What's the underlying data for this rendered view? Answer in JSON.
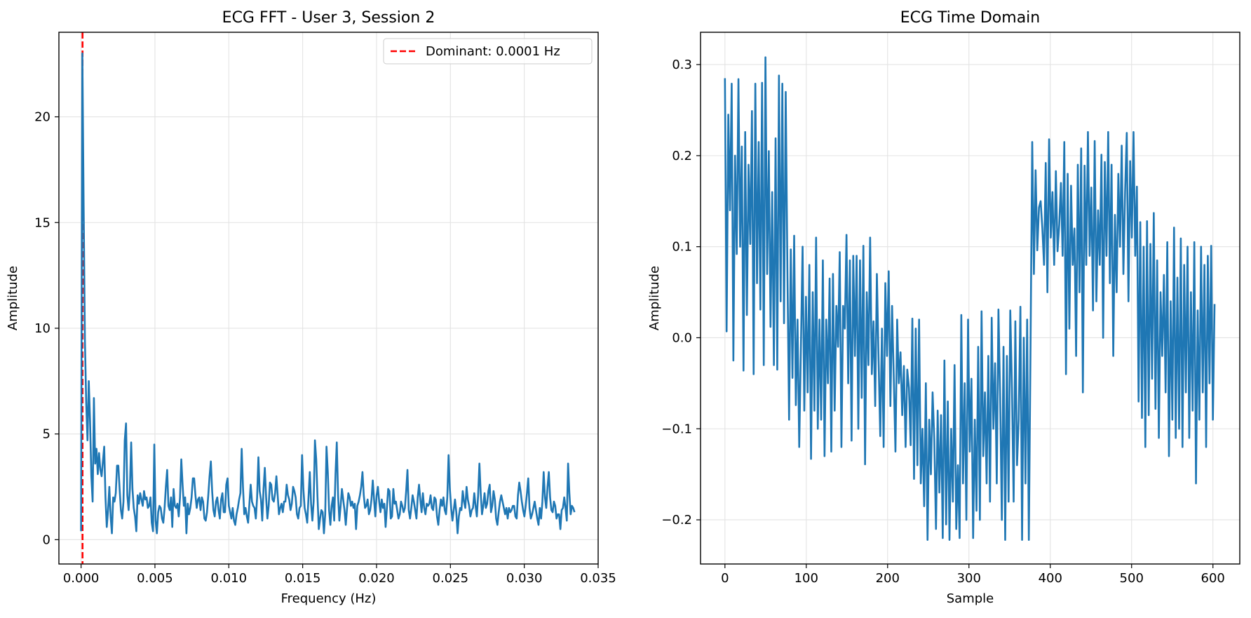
{
  "chart_data": [
    {
      "type": "line",
      "title": "ECG FFT - User 3, Session 2",
      "xlabel": "Frequency (Hz)",
      "ylabel": "Amplitude",
      "xlim": [
        -0.0015,
        0.035
      ],
      "ylim": [
        -1.15,
        24.0
      ],
      "xticks": [
        0.0,
        0.005,
        0.01,
        0.015,
        0.02,
        0.025,
        0.03,
        0.035
      ],
      "xtick_labels": [
        "0.000",
        "0.005",
        "0.010",
        "0.015",
        "0.020",
        "0.025",
        "0.030",
        "0.035"
      ],
      "yticks": [
        0,
        5,
        10,
        15,
        20
      ],
      "ytick_labels": [
        "0",
        "5",
        "10",
        "15",
        "20"
      ],
      "grid": true,
      "legend": {
        "position": "top-right",
        "entries": [
          "Dominant: 0.0001 Hz"
        ]
      },
      "annotations": [
        {
          "type": "vline",
          "x": 0.0001,
          "color": "#ff0000",
          "style": "dashed",
          "legend": "Dominant: 0.0001 Hz"
        }
      ],
      "series": [
        {
          "color": "#1f77b4",
          "x_start": 0.0,
          "x_end": 0.0334,
          "values": [
            0.4,
            23.0,
            15.8,
            9.4,
            6.5,
            4.7,
            7.5,
            5.6,
            3.0,
            1.8,
            6.7,
            3.6,
            4.3,
            3.1,
            4.1,
            3.3,
            3.0,
            3.7,
            4.4,
            2.0,
            0.6,
            1.4,
            2.5,
            1.1,
            0.3,
            2.0,
            1.8,
            2.2,
            3.5,
            3.5,
            2.4,
            1.4,
            1.0,
            1.8,
            4.7,
            5.5,
            2.1,
            1.4,
            2.4,
            4.6,
            2.4,
            1.5,
            1.1,
            0.4,
            2.1,
            1.7,
            2.2,
            1.9,
            1.6,
            2.3,
            1.9,
            2.0,
            1.5,
            1.6,
            2.0,
            0.8,
            0.4,
            4.5,
            0.9,
            0.3,
            1.3,
            1.6,
            1.5,
            1.0,
            0.8,
            1.5,
            2.5,
            3.3,
            1.6,
            1.4,
            2.0,
            0.6,
            2.4,
            1.6,
            1.5,
            1.7,
            1.1,
            2.0,
            3.8,
            2.6,
            1.6,
            2.0,
            0.3,
            1.7,
            1.2,
            1.5,
            2.0,
            2.9,
            2.9,
            2.1,
            1.5,
            1.9,
            2.0,
            1.4,
            2.0,
            1.8,
            1.0,
            0.9,
            1.3,
            2.1,
            3.0,
            3.7,
            2.3,
            1.4,
            1.1,
            1.8,
            2.0,
            1.4,
            1.0,
            1.9,
            2.2,
            1.3,
            1.3,
            2.6,
            2.9,
            1.6,
            1.3,
            1.0,
            1.5,
            0.9,
            0.7,
            1.2,
            1.5,
            1.9,
            2.2,
            4.3,
            2.5,
            1.2,
            1.5,
            1.1,
            0.8,
            1.7,
            2.6,
            1.8,
            1.6,
            1.5,
            1.0,
            2.0,
            3.9,
            2.3,
            1.9,
            0.9,
            2.4,
            3.4,
            2.0,
            1.0,
            1.6,
            2.7,
            2.6,
            1.9,
            1.8,
            2.2,
            3.0,
            2.1,
            1.2,
            1.5,
            1.7,
            1.3,
            1.8,
            1.8,
            2.6,
            2.1,
            1.9,
            1.4,
            1.7,
            2.5,
            2.3,
            2.0,
            1.2,
            1.0,
            1.5,
            1.6,
            4.0,
            2.4,
            1.5,
            1.2,
            0.8,
            2.0,
            3.2,
            1.7,
            0.9,
            1.8,
            4.7,
            3.8,
            2.0,
            0.5,
            1.0,
            1.4,
            1.3,
            0.3,
            1.2,
            4.4,
            3.2,
            1.4,
            0.7,
            1.6,
            2.0,
            0.9,
            3.1,
            4.6,
            2.1,
            0.9,
            1.6,
            2.4,
            1.9,
            1.4,
            0.7,
            1.5,
            2.2,
            2.0,
            1.6,
            1.8,
            1.5,
            1.7,
            0.5,
            1.6,
            1.8,
            2.1,
            2.5,
            3.2,
            2.1,
            1.5,
            1.6,
            1.9,
            1.2,
            1.4,
            1.9,
            2.8,
            1.9,
            1.1,
            2.1,
            2.5,
            1.8,
            1.3,
            1.9,
            1.5,
            1.7,
            0.6,
            1.5,
            2.4,
            2.3,
            1.0,
            1.1,
            2.4,
            1.7,
            1.8,
            1.4,
            1.0,
            1.2,
            1.8,
            1.6,
            1.3,
            1.5,
            2.3,
            3.3,
            1.4,
            1.0,
            1.5,
            2.1,
            1.8,
            1.4,
            1.0,
            2.0,
            2.6,
            1.9,
            1.3,
            2.2,
            1.5,
            1.2,
            1.7,
            1.6,
            1.7,
            2.1,
            1.5,
            1.4,
            2.0,
            1.9,
            1.1,
            0.7,
            1.4,
            1.9,
            1.6,
            2.0,
            1.4,
            1.2,
            2.0,
            4.0,
            2.4,
            1.5,
            0.9,
            1.4,
            1.9,
            1.3,
            0.3,
            1.1,
            1.5,
            1.4,
            2.3,
            1.8,
            1.5,
            2.5,
            1.9,
            1.6,
            1.1,
            1.4,
            1.5,
            2.2,
            1.6,
            1.1,
            2.1,
            3.6,
            2.2,
            1.2,
            1.6,
            2.2,
            1.5,
            1.7,
            2.3,
            2.6,
            1.3,
            1.6,
            2.3,
            1.9,
            1.0,
            0.7,
            1.3,
            1.8,
            2.1,
            1.8,
            1.5,
            1.2,
            1.5,
            1.0,
            1.5,
            1.3,
            1.4,
            1.6,
            1.6,
            1.1,
            1.0,
            2.1,
            2.7,
            2.3,
            1.8,
            1.4,
            1.1,
            1.6,
            2.2,
            2.9,
            1.5,
            1.0,
            1.2,
            1.5,
            1.8,
            1.4,
            1.0,
            0.7,
            1.5,
            1.0,
            1.8,
            3.2,
            2.0,
            1.5,
            2.5,
            3.2,
            2.0,
            1.4,
            1.3,
            1.8,
            1.6,
            1.0,
            1.2,
            1.2,
            0.5,
            1.4,
            1.5,
            2.0,
            1.5,
            0.9,
            3.6,
            2.2,
            1.2,
            1.6,
            1.5,
            1.3
          ]
        }
      ]
    },
    {
      "type": "line",
      "title": "ECG Time Domain",
      "xlabel": "Sample",
      "ylabel": "Amplitude",
      "xlim": [
        -30,
        633
      ],
      "ylim": [
        -0.2485,
        0.3355
      ],
      "xticks": [
        0,
        100,
        200,
        300,
        400,
        500,
        600
      ],
      "xtick_labels": [
        "0",
        "100",
        "200",
        "300",
        "400",
        "500",
        "600"
      ],
      "yticks": [
        -0.2,
        -0.1,
        0.0,
        0.1,
        0.2,
        0.3
      ],
      "ytick_labels": [
        "−0.2",
        "−0.1",
        "0.0",
        "0.1",
        "0.2",
        "0.3"
      ],
      "grid": true,
      "series": [
        {
          "color": "#1f77b4",
          "x_start": 0,
          "x_end": 602,
          "values": [
            0.285,
            0.007,
            0.245,
            0.14,
            0.279,
            -0.025,
            0.2,
            0.092,
            0.284,
            0.1,
            0.21,
            -0.036,
            0.226,
            0.025,
            0.19,
            0.103,
            0.249,
            -0.04,
            0.279,
            0.06,
            0.215,
            0.031,
            0.28,
            -0.03,
            0.308,
            0.07,
            0.205,
            0.012,
            0.16,
            -0.03,
            0.219,
            -0.035,
            0.288,
            0.04,
            0.279,
            0.016,
            0.27,
            0.075,
            -0.09,
            0.097,
            -0.044,
            0.112,
            -0.074,
            0.02,
            -0.12,
            -0.01,
            0.1,
            -0.08,
            0.045,
            -0.06,
            0.08,
            -0.133,
            0.05,
            -0.08,
            0.11,
            -0.1,
            0.02,
            -0.09,
            0.085,
            -0.13,
            0.02,
            -0.05,
            0.065,
            -0.125,
            0.07,
            -0.08,
            0.035,
            -0.01,
            0.094,
            -0.12,
            0.035,
            0.01,
            0.113,
            -0.05,
            0.085,
            -0.113,
            0.09,
            -0.02,
            0.09,
            -0.1,
            0.085,
            -0.066,
            0.101,
            -0.139,
            0.05,
            -0.03,
            0.11,
            -0.04,
            0.018,
            -0.075,
            0.07,
            -0.024,
            -0.108,
            0.01,
            -0.12,
            0.06,
            -0.02,
            0.073,
            -0.075,
            0.035,
            -0.043,
            -0.125,
            0.02,
            -0.05,
            -0.016,
            -0.085,
            -0.031,
            -0.12,
            -0.035,
            -0.055,
            -0.118,
            0.021,
            -0.155,
            0.01,
            -0.14,
            0.02,
            -0.16,
            -0.1,
            -0.185,
            -0.05,
            -0.222,
            -0.09,
            -0.15,
            -0.06,
            -0.112,
            -0.21,
            -0.08,
            -0.17,
            -0.085,
            -0.22,
            -0.025,
            -0.205,
            -0.07,
            -0.222,
            -0.1,
            -0.18,
            -0.03,
            -0.21,
            -0.14,
            -0.22,
            0.025,
            -0.16,
            -0.05,
            -0.2,
            0.02,
            -0.125,
            -0.045,
            -0.22,
            -0.09,
            -0.19,
            -0.01,
            -0.2,
            0.029,
            -0.13,
            -0.06,
            -0.16,
            -0.02,
            -0.18,
            0.022,
            -0.1,
            -0.028,
            -0.16,
            0.031,
            -0.065,
            -0.2,
            -0.01,
            -0.222,
            -0.02,
            -0.18,
            0.03,
            -0.055,
            -0.18,
            0.018,
            -0.14,
            -0.09,
            0.034,
            -0.222,
            0.0,
            -0.16,
            0.02,
            -0.222,
            -0.01,
            0.215,
            0.07,
            0.184,
            0.096,
            0.143,
            0.15,
            0.12,
            0.08,
            0.192,
            0.05,
            0.218,
            0.11,
            0.16,
            0.08,
            0.183,
            0.095,
            0.124,
            0.17,
            0.09,
            0.215,
            -0.04,
            0.18,
            0.01,
            0.167,
            0.08,
            0.12,
            -0.02,
            0.19,
            0.05,
            0.208,
            -0.06,
            0.189,
            0.08,
            0.226,
            0.09,
            0.165,
            0.03,
            0.216,
            0.04,
            0.14,
            0.08,
            0.201,
            0.0,
            0.193,
            0.09,
            0.226,
            0.06,
            0.19,
            -0.02,
            0.135,
            0.05,
            0.18,
            0.1,
            0.211,
            0.07,
            0.16,
            0.225,
            0.04,
            0.194,
            0.11,
            0.226,
            0.09,
            0.166,
            -0.07,
            0.127,
            -0.088,
            0.1,
            -0.12,
            0.128,
            -0.085,
            0.103,
            -0.045,
            0.137,
            -0.078,
            0.085,
            -0.11,
            0.05,
            -0.02,
            0.069,
            -0.06,
            0.105,
            -0.13,
            0.04,
            -0.09,
            0.121,
            -0.11,
            0.066,
            -0.1,
            0.109,
            -0.12,
            0.08,
            -0.06,
            0.1,
            -0.11,
            0.05,
            -0.08,
            0.105,
            -0.16,
            0.03,
            -0.09,
            0.1,
            -0.06,
            0.08,
            -0.12,
            0.09,
            -0.05,
            0.101,
            -0.09,
            0.037
          ]
        }
      ]
    }
  ]
}
